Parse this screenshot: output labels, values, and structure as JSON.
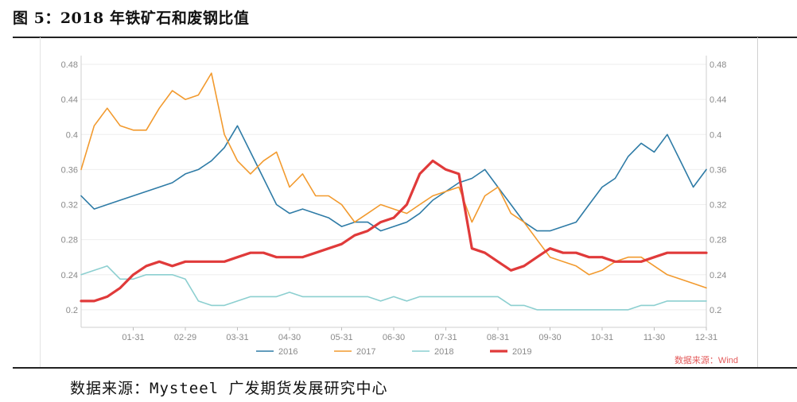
{
  "title": "图 5：2018 年铁矿石和废钢比值",
  "source": "数据来源：Mysteel 广发期货发展研究中心",
  "watermark": "数据来源：Wind",
  "chart_data": {
    "type": "line",
    "title": "图 5：2018 年铁矿石和废钢比值",
    "xlabel": "",
    "ylabel": "",
    "ylim": [
      0.18,
      0.49
    ],
    "grid": true,
    "legend_position": "bottom",
    "x_ticks": [
      "01-31",
      "02-29",
      "03-31",
      "04-30",
      "05-31",
      "06-30",
      "07-31",
      "08-31",
      "09-30",
      "10-31",
      "11-30",
      "12-31"
    ],
    "y_ticks": [
      0.2,
      0.24,
      0.28,
      0.32,
      0.36,
      0.4,
      0.44,
      0.48
    ],
    "y_tick_labels": [
      "0.2",
      "0.24",
      "0.28",
      "0.32",
      "0.36",
      "0.4",
      "0.44",
      "0.48"
    ],
    "x": [
      0,
      0.25,
      0.5,
      0.75,
      1,
      1.25,
      1.5,
      1.75,
      2,
      2.25,
      2.5,
      2.75,
      3,
      3.25,
      3.5,
      3.75,
      4,
      4.25,
      4.5,
      4.75,
      5,
      5.25,
      5.5,
      5.75,
      6,
      6.25,
      6.5,
      6.75,
      7,
      7.25,
      7.5,
      7.75,
      8,
      8.25,
      8.5,
      8.75,
      9,
      9.25,
      9.5,
      9.75,
      10,
      10.25,
      10.5,
      10.75,
      11,
      11.25,
      11.5,
      11.75,
      12
    ],
    "series": [
      {
        "name": "2016",
        "color": "#2e7ba6",
        "values": [
          0.33,
          0.315,
          0.32,
          0.325,
          0.33,
          0.335,
          0.34,
          0.345,
          0.355,
          0.36,
          0.37,
          0.385,
          0.41,
          0.38,
          0.35,
          0.32,
          0.31,
          0.315,
          0.31,
          0.305,
          0.295,
          0.3,
          0.3,
          0.29,
          0.295,
          0.3,
          0.31,
          0.325,
          0.335,
          0.345,
          0.35,
          0.36,
          0.34,
          0.32,
          0.3,
          0.29,
          0.29,
          0.295,
          0.3,
          0.32,
          0.34,
          0.35,
          0.375,
          0.39,
          0.38,
          0.4,
          0.37,
          0.34,
          0.36
        ]
      },
      {
        "name": "2017",
        "color": "#f29a2e",
        "values": [
          0.36,
          0.41,
          0.43,
          0.41,
          0.405,
          0.405,
          0.43,
          0.45,
          0.44,
          0.445,
          0.47,
          0.4,
          0.37,
          0.355,
          0.37,
          0.38,
          0.34,
          0.355,
          0.33,
          0.33,
          0.32,
          0.3,
          0.31,
          0.32,
          0.315,
          0.31,
          0.32,
          0.33,
          0.335,
          0.34,
          0.3,
          0.33,
          0.34,
          0.31,
          0.3,
          0.28,
          0.26,
          0.255,
          0.25,
          0.24,
          0.245,
          0.255,
          0.26,
          0.26,
          0.25,
          0.24,
          0.235,
          0.23,
          0.225
        ]
      },
      {
        "name": "2018",
        "color": "#8ccfd0",
        "values": [
          0.24,
          0.245,
          0.25,
          0.235,
          0.235,
          0.24,
          0.24,
          0.24,
          0.235,
          0.21,
          0.205,
          0.205,
          0.21,
          0.215,
          0.215,
          0.215,
          0.22,
          0.215,
          0.215,
          0.215,
          0.215,
          0.215,
          0.215,
          0.21,
          0.215,
          0.21,
          0.215,
          0.215,
          0.215,
          0.215,
          0.215,
          0.215,
          0.215,
          0.205,
          0.205,
          0.2,
          0.2,
          0.2,
          0.2,
          0.2,
          0.2,
          0.2,
          0.2,
          0.205,
          0.205,
          0.21,
          0.21,
          0.21,
          0.21
        ]
      },
      {
        "name": "2019",
        "color": "#e03a3a",
        "values": [
          0.21,
          0.21,
          0.215,
          0.225,
          0.24,
          0.25,
          0.255,
          0.25,
          0.255,
          0.255,
          0.255,
          0.255,
          0.26,
          0.265,
          0.265,
          0.26,
          0.26,
          0.26,
          0.265,
          0.27,
          0.275,
          0.285,
          0.29,
          0.3,
          0.305,
          0.32,
          0.355,
          0.37,
          0.36,
          0.355,
          0.27,
          0.265,
          0.255,
          0.245,
          0.25,
          0.26,
          0.27,
          0.265,
          0.265,
          0.26,
          0.26,
          0.255,
          0.255,
          0.255,
          0.26,
          0.265,
          0.265,
          0.265,
          0.265
        ]
      }
    ]
  }
}
